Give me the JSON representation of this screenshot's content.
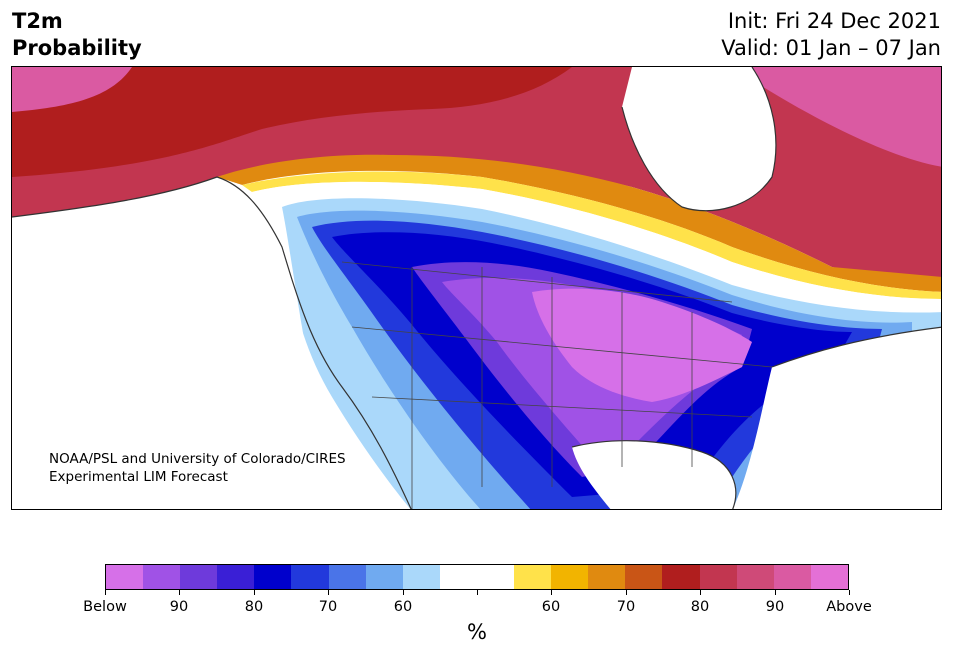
{
  "header": {
    "title_line1": "T2m",
    "title_line2": "Probability",
    "init_text": "Init: Fri 24 Dec 2021",
    "valid_text": "Valid: 01 Jan – 07 Jan"
  },
  "credit": {
    "line1": "NOAA/PSL and University of Colorado/CIRES",
    "line2": "Experimental LIM Forecast"
  },
  "colorbar": {
    "colors": [
      "#d670e8",
      "#a052e6",
      "#6e3adb",
      "#3a1fd6",
      "#0000cc",
      "#2239dc",
      "#4a74e8",
      "#70aaf0",
      "#aad8fa",
      "#ffffff",
      "#ffffff",
      "#ffe24a",
      "#f2b400",
      "#e08a10",
      "#c95516",
      "#b01e1e",
      "#c23650",
      "#cf4a78",
      "#da5aa2",
      "#e470d6"
    ],
    "tick_labels": [
      "Below",
      "90",
      "80",
      "70",
      "60",
      "",
      "60",
      "70",
      "80",
      "90",
      "Above"
    ],
    "unit_label": "%"
  },
  "map": {
    "region": "North America",
    "below_normal_region": "contiguous United States and southern Canada",
    "above_normal_region": "Alaska, northern Canada and Atlantic Canada"
  }
}
